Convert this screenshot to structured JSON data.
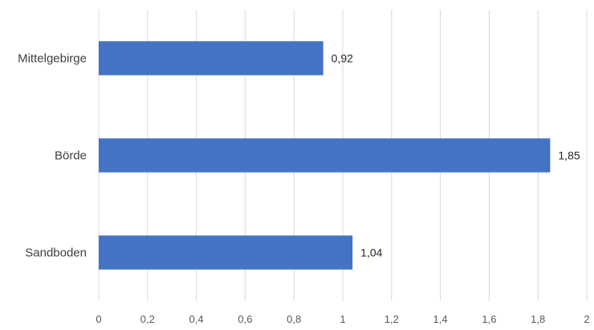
{
  "chart_data": {
    "type": "bar",
    "orientation": "horizontal",
    "categories": [
      "Mittelgebirge",
      "Börde",
      "Sandboden"
    ],
    "values": [
      0.92,
      1.85,
      1.04
    ],
    "value_labels": [
      "0,92",
      "1,85",
      "1,04"
    ],
    "xlim": [
      0,
      2
    ],
    "x_ticks": [
      0,
      0.2,
      0.4,
      0.6,
      0.8,
      1,
      1.2,
      1.4,
      1.6,
      1.8,
      2
    ],
    "x_tick_labels": [
      "0",
      "0,2",
      "0,4",
      "0,6",
      "0,8",
      "1",
      "1,2",
      "1,4",
      "1,6",
      "1,8",
      "2"
    ],
    "grid": true,
    "bar_color": "#4472C4",
    "title": "",
    "xlabel": "",
    "ylabel": ""
  }
}
